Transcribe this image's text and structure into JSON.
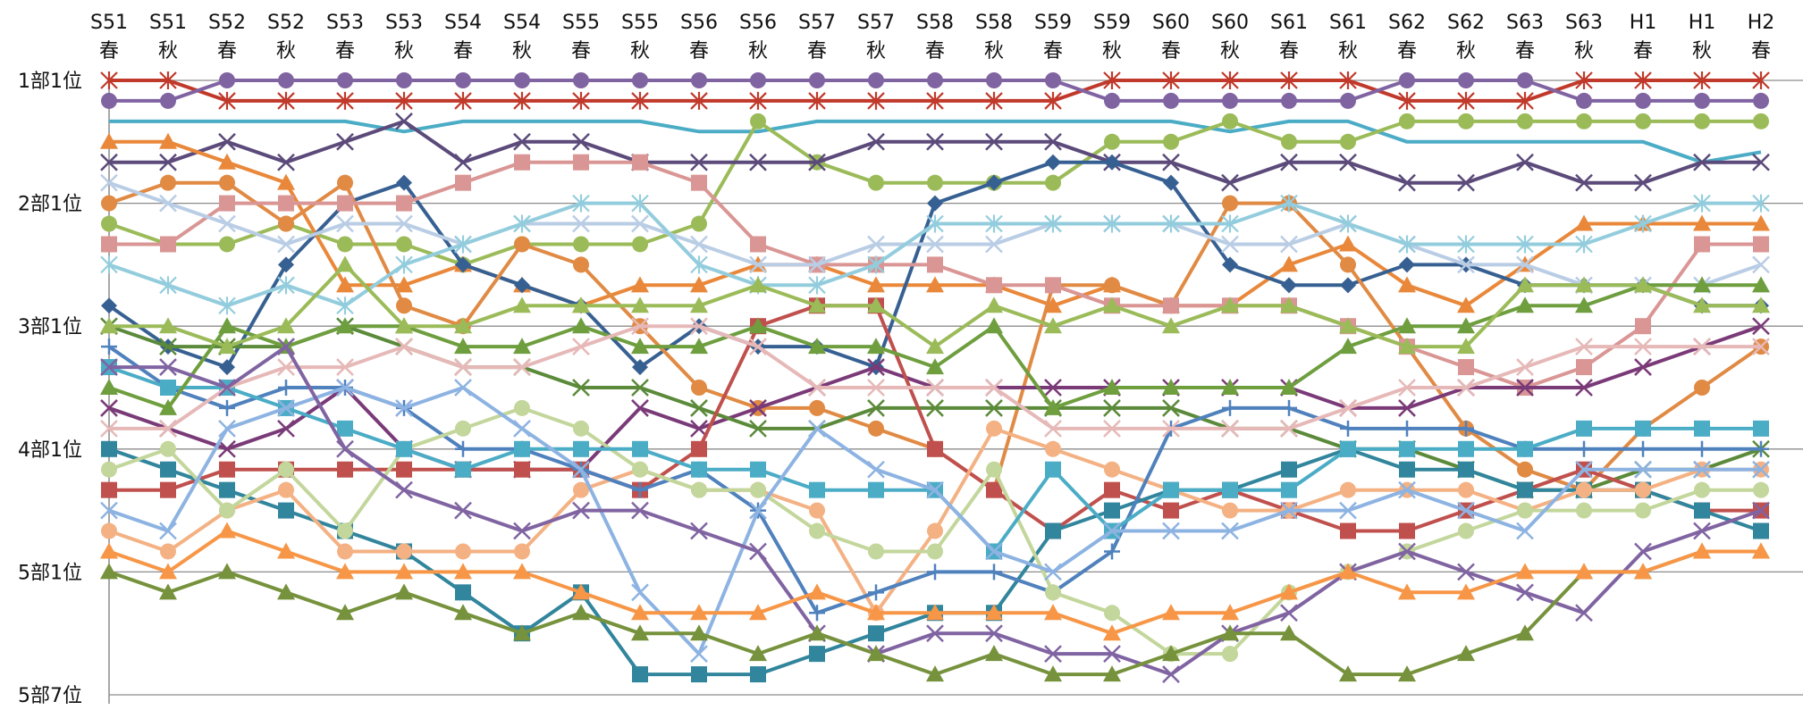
{
  "chart_data": {
    "type": "line",
    "title": "",
    "xlabel": "",
    "ylabel": "",
    "x": [
      {
        "era": "S51",
        "season": "春"
      },
      {
        "era": "S51",
        "season": "秋"
      },
      {
        "era": "S52",
        "season": "春"
      },
      {
        "era": "S52",
        "season": "秋"
      },
      {
        "era": "S53",
        "season": "春"
      },
      {
        "era": "S53",
        "season": "秋"
      },
      {
        "era": "S54",
        "season": "春"
      },
      {
        "era": "S54",
        "season": "秋"
      },
      {
        "era": "S55",
        "season": "春"
      },
      {
        "era": "S55",
        "season": "秋"
      },
      {
        "era": "S56",
        "season": "春"
      },
      {
        "era": "S56",
        "season": "秋"
      },
      {
        "era": "S57",
        "season": "春"
      },
      {
        "era": "S57",
        "season": "秋"
      },
      {
        "era": "S58",
        "season": "春"
      },
      {
        "era": "S58",
        "season": "秋"
      },
      {
        "era": "S59",
        "season": "春"
      },
      {
        "era": "S59",
        "season": "秋"
      },
      {
        "era": "S60",
        "season": "春"
      },
      {
        "era": "S60",
        "season": "秋"
      },
      {
        "era": "S61",
        "season": "春"
      },
      {
        "era": "S61",
        "season": "秋"
      },
      {
        "era": "S62",
        "season": "春"
      },
      {
        "era": "S62",
        "season": "秋"
      },
      {
        "era": "S63",
        "season": "春"
      },
      {
        "era": "S63",
        "season": "秋"
      },
      {
        "era": "H1",
        "season": "春"
      },
      {
        "era": "H1",
        "season": "秋"
      },
      {
        "era": "H2",
        "season": "春"
      }
    ],
    "y_ticks": [
      {
        "label": "1部1位",
        "value": 1
      },
      {
        "label": "2部1位",
        "value": 7
      },
      {
        "label": "3部1位",
        "value": 13
      },
      {
        "label": "4部1位",
        "value": 19
      },
      {
        "label": "5部1位",
        "value": 25
      },
      {
        "label": "5部7位",
        "value": 31
      }
    ],
    "ylim": [
      0.2,
      31.8
    ],
    "y_inverted": true,
    "grid": true,
    "legend": "none",
    "series": [
      {
        "color": "#c0392b",
        "marker": "star",
        "values": [
          1,
          1,
          2,
          2,
          2,
          2,
          2,
          2,
          2,
          2,
          2,
          2,
          2,
          2,
          2,
          2,
          2,
          1,
          1,
          1,
          1,
          1,
          2,
          2,
          2,
          1,
          1,
          1,
          1
        ]
      },
      {
        "color": "#8064a2",
        "marker": "circle",
        "values": [
          2,
          2,
          1,
          1,
          1,
          1,
          1,
          1,
          1,
          1,
          1,
          1,
          1,
          1,
          1,
          1,
          1,
          2,
          2,
          2,
          2,
          2,
          1,
          1,
          1,
          2,
          2,
          2,
          2
        ]
      },
      {
        "color": "#4bacc6",
        "marker": "none",
        "values": [
          3,
          3,
          3,
          3,
          3,
          3.5,
          3,
          3,
          3,
          3,
          3.5,
          3.5,
          3,
          3,
          3,
          3,
          3,
          3,
          3,
          3.5,
          3,
          3,
          4,
          4,
          4,
          4,
          4,
          5,
          4.5
        ]
      },
      {
        "color": "#9bbb59",
        "marker": "circle",
        "values": [
          8,
          9,
          9,
          8,
          9,
          9,
          10,
          9,
          9,
          9,
          8,
          3,
          5,
          6,
          6,
          6,
          6,
          4,
          4,
          3,
          4,
          4,
          3,
          3,
          3,
          3,
          3,
          3,
          3
        ]
      },
      {
        "color": "#5b4a7a",
        "marker": "x",
        "values": [
          5,
          5,
          4,
          5,
          4,
          3,
          5,
          4,
          4,
          5,
          5,
          5,
          5,
          4,
          4,
          4,
          4,
          5,
          5,
          6,
          5,
          5,
          6,
          6,
          5,
          6,
          6,
          5,
          5
        ]
      },
      {
        "color": "#e9883a",
        "marker": "triangle",
        "values": [
          4,
          4,
          5,
          6,
          11,
          11,
          10,
          11,
          12,
          11,
          11,
          10,
          10,
          11,
          11,
          11,
          12,
          11,
          12,
          12,
          10,
          9,
          11,
          12,
          10,
          8,
          8,
          8,
          8
        ]
      },
      {
        "color": "#376092",
        "marker": "diamond",
        "values": [
          12,
          14,
          15,
          10,
          7,
          6,
          10,
          11,
          12,
          15,
          13,
          14,
          14,
          15,
          7,
          6,
          5,
          5,
          6,
          10,
          11,
          11,
          10,
          10,
          11,
          11,
          11,
          12,
          12
        ]
      },
      {
        "color": "#e08a44",
        "marker": "circle",
        "values": [
          7,
          6,
          6,
          8,
          6,
          12,
          13,
          9,
          10,
          13,
          16,
          17,
          17,
          18,
          19,
          21,
          11,
          11,
          12,
          7,
          7,
          10,
          14,
          18,
          20,
          21,
          18,
          16,
          14
        ]
      },
      {
        "color": "#d99694",
        "marker": "square",
        "values": [
          9,
          9,
          7,
          7,
          7,
          7,
          6,
          5,
          5,
          5,
          6,
          9,
          10,
          10,
          10,
          11,
          11,
          12,
          12,
          12,
          12,
          13,
          14,
          15,
          16,
          15,
          13,
          9,
          9
        ]
      },
      {
        "color": "#b9cde5",
        "marker": "x",
        "values": [
          6,
          7,
          8,
          9,
          8,
          8,
          9,
          8,
          8,
          8,
          9,
          10,
          10,
          9,
          9,
          9,
          8,
          8,
          8,
          9,
          9,
          8,
          9,
          10,
          10,
          11,
          11,
          11,
          10
        ]
      },
      {
        "color": "#93cddd",
        "marker": "star",
        "values": [
          10,
          11,
          12,
          11,
          12,
          10,
          9,
          8,
          7,
          7,
          10,
          11,
          11,
          10,
          8,
          8,
          8,
          8,
          8,
          8,
          7,
          8,
          9,
          9,
          9,
          9,
          8,
          7,
          7
        ]
      },
      {
        "color": "#7a3a78",
        "marker": "x",
        "values": [
          17,
          18,
          19,
          18,
          16,
          19,
          20,
          20,
          20,
          17,
          18,
          17,
          16,
          15,
          16,
          16,
          16,
          16,
          16,
          16,
          16,
          17,
          17,
          16,
          16,
          16,
          15,
          14,
          13
        ]
      },
      {
        "color": "#5b8a3a",
        "marker": "x",
        "values": [
          13,
          14,
          14,
          14,
          13,
          14,
          15,
          15,
          16,
          16,
          17,
          18,
          18,
          17,
          17,
          17,
          17,
          17,
          17,
          18,
          18,
          19,
          19,
          20,
          21,
          21,
          20,
          20,
          19
        ]
      },
      {
        "color": "#c0504d",
        "marker": "square",
        "values": [
          21,
          21,
          20,
          20,
          20,
          20,
          20,
          20,
          20,
          21,
          19,
          13,
          12,
          12,
          19,
          21,
          23,
          21,
          22,
          21,
          22,
          23,
          23,
          22,
          21,
          20,
          21,
          22,
          22
        ]
      },
      {
        "color": "#31859c",
        "marker": "square",
        "values": [
          19,
          20,
          21,
          22,
          23,
          24,
          26,
          28,
          26,
          30,
          30,
          30,
          29,
          28,
          27,
          27,
          23,
          22,
          21,
          21,
          20,
          19,
          20,
          20,
          21,
          21,
          21,
          22,
          23
        ]
      },
      {
        "color": "#f4b183",
        "marker": "circle",
        "values": [
          23,
          24,
          22,
          21,
          24,
          24,
          24,
          24,
          21,
          20,
          21,
          21,
          22,
          27,
          23,
          18,
          19,
          20,
          21,
          22,
          22,
          21,
          21,
          21,
          22,
          21,
          21,
          20,
          20
        ]
      },
      {
        "color": "#4f81bd",
        "marker": "plus",
        "values": [
          14,
          16,
          17,
          16,
          16,
          17,
          19,
          19,
          20,
          21,
          20,
          22,
          27,
          26,
          25,
          25,
          26,
          24,
          18,
          17,
          17,
          18,
          18,
          18,
          19,
          19,
          19,
          19,
          19
        ]
      },
      {
        "color": "#c3d69b",
        "marker": "circle",
        "values": [
          20,
          19,
          22,
          20,
          23,
          19,
          18,
          17,
          18,
          20,
          21,
          21,
          23,
          24,
          24,
          20,
          26,
          27,
          29,
          29,
          26,
          25,
          24,
          23,
          22,
          22,
          22,
          21,
          21
        ]
      },
      {
        "color": "#4bacc6",
        "marker": "square",
        "values": [
          15,
          16,
          16,
          17,
          18,
          19,
          20,
          19,
          19,
          19,
          20,
          20,
          21,
          21,
          21,
          24,
          20,
          23,
          21,
          21,
          21,
          19,
          19,
          19,
          19,
          18,
          18,
          18,
          18
        ]
      },
      {
        "color": "#8db3e2",
        "marker": "x",
        "values": [
          22,
          23,
          18,
          17,
          16,
          17,
          16,
          18,
          20,
          26,
          29,
          22,
          18,
          20,
          21,
          24,
          25,
          23,
          23,
          23,
          22,
          22,
          21,
          22,
          23,
          20,
          20,
          20,
          20
        ]
      },
      {
        "color": "#6e9e3e",
        "marker": "triangle",
        "values": [
          16,
          17,
          13,
          14,
          13,
          13,
          14,
          14,
          13,
          14,
          14,
          13,
          14,
          14,
          15,
          13,
          17,
          16,
          16,
          16,
          16,
          14,
          13,
          13,
          12,
          12,
          11,
          11,
          11
        ]
      },
      {
        "color": "#9bbb59",
        "marker": "triangle",
        "values": [
          13,
          13,
          14,
          13,
          10,
          13,
          13,
          12,
          12,
          12,
          12,
          11,
          12,
          12,
          14,
          12,
          13,
          12,
          13,
          12,
          12,
          13,
          14,
          14,
          11,
          11,
          11,
          12,
          12
        ]
      },
      {
        "color": "#e6b9b8",
        "marker": "x",
        "values": [
          18,
          18,
          16,
          15,
          15,
          14,
          15,
          15,
          14,
          13,
          13,
          14,
          16,
          16,
          16,
          16,
          18,
          18,
          18,
          18,
          18,
          17,
          16,
          16,
          15,
          14,
          14,
          14,
          14
        ]
      },
      {
        "color": "#8064a2",
        "marker": "x",
        "values": [
          15,
          15,
          16,
          14,
          19,
          21,
          22,
          23,
          22,
          22,
          23,
          24,
          28,
          29,
          28,
          28,
          29,
          29,
          30,
          28,
          27,
          25,
          24,
          25,
          26,
          27,
          24,
          23,
          22
        ]
      },
      {
        "color": "#76923c",
        "marker": "triangle",
        "values": [
          25,
          26,
          25,
          26,
          27,
          26,
          27,
          28,
          27,
          28,
          28,
          29,
          28,
          29,
          30,
          29,
          30,
          30,
          29,
          28,
          28,
          30,
          30,
          29,
          28,
          25,
          25,
          24,
          24
        ]
      },
      {
        "color": "#f79646",
        "marker": "triangle",
        "values": [
          24,
          25,
          23,
          24,
          25,
          25,
          25,
          25,
          26,
          27,
          27,
          27,
          26,
          27,
          27,
          27,
          27,
          28,
          27,
          27,
          26,
          25,
          26,
          26,
          25,
          25,
          25,
          24,
          24
        ]
      }
    ]
  }
}
